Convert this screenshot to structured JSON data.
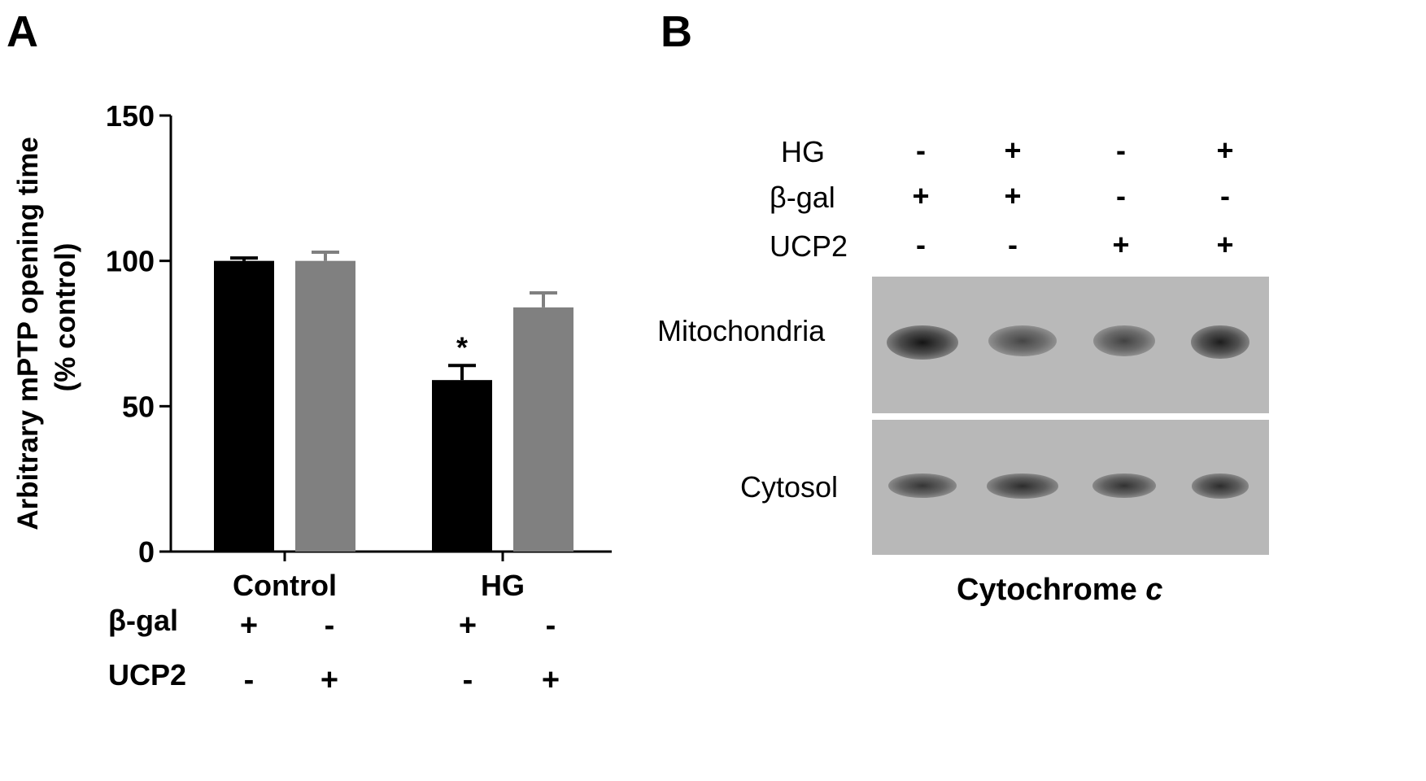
{
  "panel_a": {
    "letter": "A",
    "ylabel_line1": "Arbitrary mPTP opening time",
    "ylabel_line2": "(% control)",
    "row_labels": [
      "β-gal",
      "UCP2"
    ],
    "colors": {
      "black": "#000000",
      "gray": "#808080"
    }
  },
  "chart_data": {
    "type": "bar",
    "categories": [
      "Control",
      "HG"
    ],
    "series": [
      {
        "values": [
          100,
          59
        ],
        "errors": [
          1,
          5
        ],
        "color": "#000000"
      },
      {
        "values": [
          100,
          84
        ],
        "errors": [
          3,
          5
        ],
        "color": "#808080"
      }
    ],
    "ylim": [
      0,
      150
    ],
    "yticks": [
      0,
      50,
      100,
      150
    ],
    "ylabel": "Arbitrary mPTP opening time (% control)",
    "annotations": [
      {
        "category": "HG",
        "series": 0,
        "text": "*"
      }
    ],
    "conditions": {
      "β-gal": [
        "+",
        "-",
        "+",
        "-"
      ],
      "UCP2": [
        "-",
        "+",
        "-",
        "+"
      ]
    }
  },
  "panel_b": {
    "letter": "B",
    "rows": [
      {
        "label": "HG",
        "signs": [
          "-",
          "+",
          "-",
          "+"
        ]
      },
      {
        "label": "β-gal",
        "signs": [
          "+",
          "+",
          "-",
          "-"
        ]
      },
      {
        "label": "UCP2",
        "signs": [
          "-",
          "-",
          "+",
          "+"
        ]
      }
    ],
    "blot_labels": [
      "Mitochondria",
      "Cytosol"
    ],
    "caption_main": "Cytochrome ",
    "caption_italic": "c",
    "band_intensity": {
      "Mitochondria": [
        1.0,
        0.7,
        0.72,
        0.95
      ],
      "Cytosol": [
        0.8,
        0.85,
        0.82,
        0.85
      ]
    }
  }
}
